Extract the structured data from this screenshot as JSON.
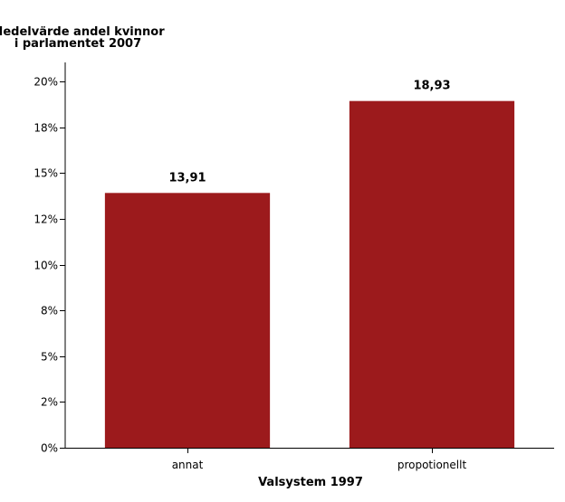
{
  "chart_data": {
    "type": "bar",
    "ylabel": [
      "Medelvärde andel kvinnor",
      "i parlamentet 2007"
    ],
    "xlabel": "Valsystem 1997",
    "categories": [
      "annat",
      "propotionellt"
    ],
    "values": [
      13.91,
      18.93
    ],
    "data_labels": [
      "13,91",
      "18,93"
    ],
    "ylim": [
      0,
      20.5
    ],
    "yticks": [
      0,
      2.5,
      5,
      7.5,
      10,
      12.5,
      15,
      17.5,
      20
    ],
    "ytick_labels": [
      "0%",
      "2%",
      "5%",
      "8%",
      "10%",
      "12%",
      "15%",
      "18%",
      "20%"
    ],
    "bar_color": "#9c1a1c",
    "grid": false,
    "legend": "none"
  }
}
